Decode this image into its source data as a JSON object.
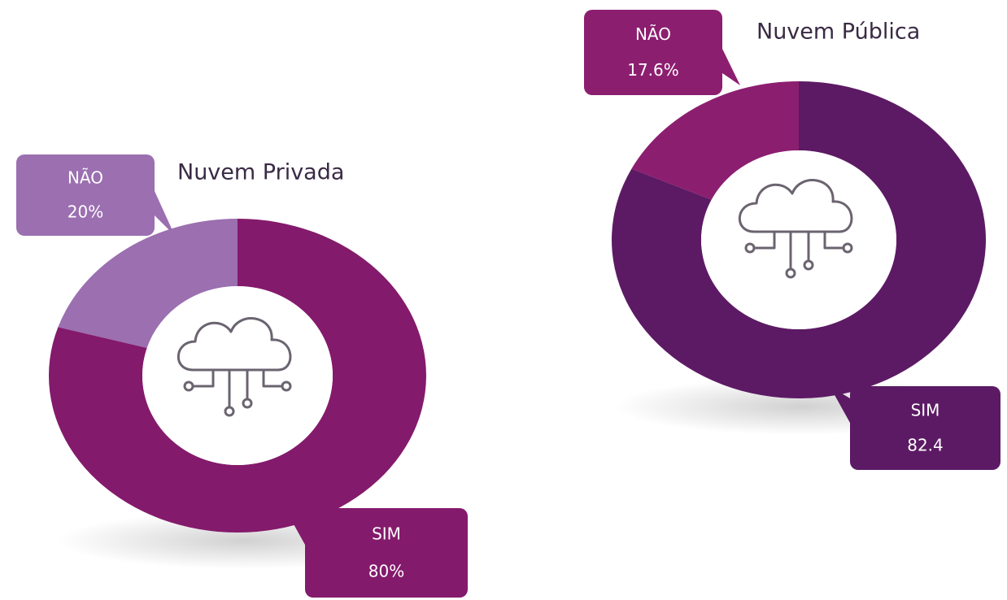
{
  "chart_data": [
    {
      "type": "pie",
      "title": "Nuvem Privada",
      "categories": [
        "NÃO",
        "SIM"
      ],
      "values": [
        20,
        80
      ],
      "value_labels": [
        "20%",
        "80%"
      ],
      "colors": [
        "#9b6fb0",
        "#841a6c"
      ]
    },
    {
      "type": "pie",
      "title": "Nuvem Pública",
      "categories": [
        "NÃO",
        "SIM"
      ],
      "values": [
        17.6,
        82.4
      ],
      "value_labels": [
        "17.6%",
        "82.4"
      ],
      "colors": [
        "#8c1e70",
        "#5c1a64"
      ]
    }
  ]
}
